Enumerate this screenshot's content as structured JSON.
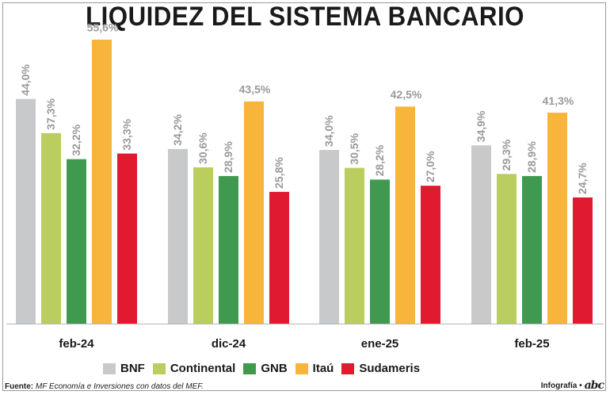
{
  "chart_data": {
    "type": "bar",
    "title": "LIQUIDEZ DEL SISTEMA BANCARIO",
    "categories": [
      "feb-24",
      "dic-24",
      "ene-25",
      "feb-25"
    ],
    "ylim": [
      0,
      60
    ],
    "series": [
      {
        "name": "BNF",
        "color": "#c8c9cb",
        "values": [
          44.0,
          34.2,
          34.0,
          34.9
        ],
        "labels": [
          "44,0%",
          "34,2%",
          "34,0%",
          "34,9%"
        ]
      },
      {
        "name": "Continental",
        "color": "#b9ce5f",
        "values": [
          37.3,
          30.6,
          30.5,
          29.3
        ],
        "labels": [
          "37,3%",
          "30,6%",
          "30,5%",
          "29,3%"
        ]
      },
      {
        "name": "GNB",
        "color": "#3f9a4f",
        "values": [
          32.2,
          28.9,
          28.2,
          28.9
        ],
        "labels": [
          "32,2%",
          "28,9%",
          "28,2%",
          "28,9%"
        ]
      },
      {
        "name": "Itaú",
        "color": "#f7b53b",
        "values": [
          55.6,
          43.5,
          42.5,
          41.3
        ],
        "labels": [
          "55,6%",
          "43,5%",
          "42,5%",
          "41,3%"
        ]
      },
      {
        "name": "Sudameris",
        "color": "#e01a2f",
        "values": [
          33.3,
          25.8,
          27.0,
          24.7
        ],
        "labels": [
          "33,3%",
          "25,8%",
          "27,0%",
          "24,7%"
        ]
      }
    ]
  },
  "footer": {
    "source_label": "Fuente:",
    "source_text": "MF Economía e Inversiones con datos del MEF.",
    "credit": "Infografía •",
    "logo": "abc"
  }
}
